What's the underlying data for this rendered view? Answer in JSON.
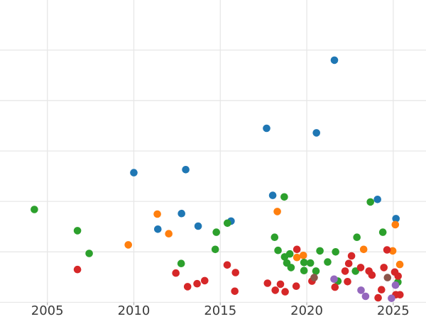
{
  "chart_data": {
    "type": "scatter",
    "title": "",
    "xlabel": "",
    "ylabel": "",
    "x_ticks": [
      2005,
      2010,
      2015,
      2020,
      2025
    ],
    "x_tick_labels": [
      "2005",
      "2010",
      "2015",
      "2020",
      "2025"
    ],
    "x_range": [
      2002.3,
      2026.9
    ],
    "y_gridline_units": [
      0,
      1,
      2,
      3,
      4,
      5
    ],
    "y_range": [
      0,
      6
    ],
    "y_axis_note": "y-axis tick labels are cropped out of the screenshot; y values are measured in gridline-spacing units above the bottom visible gridline",
    "grid": true,
    "legend": "none",
    "marker": {
      "shape": "circle",
      "radius_px": 5.3
    },
    "series": [
      {
        "name": "blue",
        "color": "#1f77b4",
        "points": [
          [
            2010.0,
            2.57
          ],
          [
            2013.0,
            2.63
          ],
          [
            2017.68,
            3.45
          ],
          [
            2020.56,
            3.36
          ],
          [
            2021.6,
            4.8
          ],
          [
            2011.39,
            1.45
          ],
          [
            2012.76,
            1.76
          ],
          [
            2013.72,
            1.51
          ],
          [
            2015.62,
            1.61
          ],
          [
            2018.03,
            2.12
          ],
          [
            2024.09,
            2.04
          ],
          [
            2025.16,
            1.66
          ]
        ]
      },
      {
        "name": "orange",
        "color": "#ff7f0e",
        "points": [
          [
            2011.36,
            1.75
          ],
          [
            2012.02,
            1.36
          ],
          [
            2009.68,
            1.14
          ],
          [
            2018.3,
            1.8
          ],
          [
            2019.43,
            0.89
          ],
          [
            2019.8,
            0.93
          ],
          [
            2023.29,
            1.05
          ],
          [
            2024.97,
            1.02
          ],
          [
            2025.38,
            0.75
          ],
          [
            2025.12,
            1.54
          ]
        ]
      },
      {
        "name": "green",
        "color": "#2ca02c",
        "points": [
          [
            2004.25,
            1.84
          ],
          [
            2006.74,
            1.42
          ],
          [
            2007.42,
            0.97
          ],
          [
            2014.77,
            1.39
          ],
          [
            2014.71,
            1.05
          ],
          [
            2015.41,
            1.57
          ],
          [
            2012.74,
            0.77
          ],
          [
            2018.7,
            2.09
          ],
          [
            2018.14,
            1.29
          ],
          [
            2018.34,
            1.03
          ],
          [
            2018.72,
            0.9
          ],
          [
            2018.85,
            0.78
          ],
          [
            2019.02,
            0.96
          ],
          [
            2019.09,
            0.69
          ],
          [
            2019.84,
            0.79
          ],
          [
            2019.84,
            0.63
          ],
          [
            2020.21,
            0.78
          ],
          [
            2020.53,
            0.62
          ],
          [
            2020.76,
            1.02
          ],
          [
            2021.21,
            0.8
          ],
          [
            2021.67,
            1.0
          ],
          [
            2021.8,
            0.42
          ],
          [
            2022.82,
            0.62
          ],
          [
            2022.9,
            1.29
          ],
          [
            2023.68,
            1.99
          ],
          [
            2024.4,
            1.39
          ],
          [
            2025.27,
            0.4
          ]
        ]
      },
      {
        "name": "red",
        "color": "#d62728",
        "points": [
          [
            2006.74,
            0.65
          ],
          [
            2012.43,
            0.58
          ],
          [
            2013.11,
            0.31
          ],
          [
            2013.66,
            0.37
          ],
          [
            2014.1,
            0.43
          ],
          [
            2015.4,
            0.74
          ],
          [
            2015.88,
            0.59
          ],
          [
            2015.84,
            0.22
          ],
          [
            2017.73,
            0.38
          ],
          [
            2018.18,
            0.24
          ],
          [
            2018.48,
            0.36
          ],
          [
            2018.75,
            0.21
          ],
          [
            2019.43,
            1.05
          ],
          [
            2019.39,
            0.32
          ],
          [
            2020.3,
            0.42
          ],
          [
            2021.63,
            0.3
          ],
          [
            2022.36,
            0.41
          ],
          [
            2022.22,
            0.62
          ],
          [
            2022.43,
            0.77
          ],
          [
            2022.59,
            0.92
          ],
          [
            2023.12,
            0.69
          ],
          [
            2023.6,
            0.62
          ],
          [
            2023.77,
            0.54
          ],
          [
            2024.32,
            0.25
          ],
          [
            2024.13,
            0.09
          ],
          [
            2024.46,
            0.69
          ],
          [
            2024.64,
            1.04
          ],
          [
            2025.09,
            0.6
          ],
          [
            2025.28,
            0.52
          ],
          [
            2025.15,
            0.15
          ],
          [
            2025.39,
            0.15
          ]
        ]
      },
      {
        "name": "purple",
        "color": "#9467bd",
        "points": [
          [
            2021.58,
            0.46
          ],
          [
            2023.14,
            0.24
          ],
          [
            2023.4,
            0.12
          ],
          [
            2024.9,
            0.08
          ],
          [
            2025.13,
            0.34
          ]
        ]
      },
      {
        "name": "brown",
        "color": "#8c564b",
        "points": [
          [
            2020.43,
            0.49
          ],
          [
            2024.67,
            0.49
          ]
        ]
      }
    ]
  },
  "axis": {
    "tick_label_color": "#3b3b3b",
    "tick_mark_color": "#b5b5b5"
  },
  "colors": {
    "background": "#ffffff",
    "gridline": "#e7e7e7"
  }
}
